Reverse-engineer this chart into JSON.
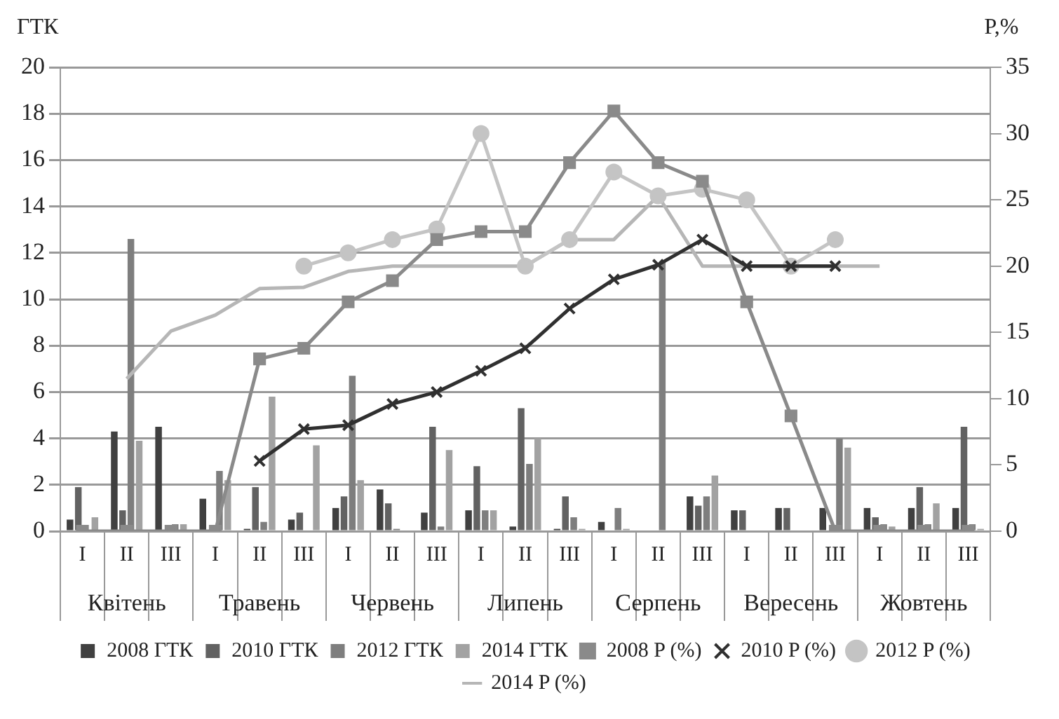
{
  "chart_data": {
    "type": "bar",
    "categories": [
      "I",
      "II",
      "III",
      "I",
      "II",
      "III",
      "I",
      "II",
      "III",
      "I",
      "II",
      "III",
      "I",
      "II",
      "III",
      "I",
      "II",
      "III",
      "I",
      "II",
      "III"
    ],
    "annotations": [
      "Квітень",
      "Травень",
      "Червень",
      "Липень",
      "Серпень",
      "Вересень",
      "Жовтень"
    ],
    "ylabel": "ГТК",
    "y2label": "P,%",
    "ylim": [
      0,
      20
    ],
    "yticks": [
      0,
      2,
      4,
      6,
      8,
      10,
      12,
      14,
      16,
      18,
      20
    ],
    "y2lim": [
      0,
      35
    ],
    "y2ticks": [
      0,
      5,
      10,
      15,
      20,
      25,
      30,
      35
    ],
    "grid": "y",
    "legend": "bottom",
    "series": [
      {
        "name": "2008 ГТК",
        "color": "#404040",
        "values": [
          0.5,
          4.3,
          4.5,
          1.4,
          0.1,
          0.5,
          1.0,
          1.8,
          0.8,
          0.9,
          0.2,
          0.1,
          0.4,
          0,
          1.5,
          0.9,
          1.0,
          1.0,
          1.0,
          1.0,
          1.0
        ]
      },
      {
        "name": "2010 ГТК",
        "color": "#626262",
        "values": [
          1.9,
          0.9,
          null,
          null,
          1.9,
          0.8,
          1.5,
          1.2,
          4.5,
          2.8,
          5.3,
          1.5,
          0,
          0,
          1.1,
          0.9,
          1.0,
          null,
          0.6,
          1.9,
          4.5
        ]
      },
      {
        "name": "2012 ГТК",
        "color": "#7e7e7e",
        "values": [
          null,
          12.6,
          0.3,
          2.6,
          0.4,
          0,
          6.7,
          0.1,
          0.2,
          0.9,
          2.9,
          0.6,
          1.0,
          11.6,
          1.5,
          0,
          0,
          4.0,
          0.3,
          0.3,
          0.3
        ]
      },
      {
        "name": "2014 ГТК",
        "color": "#a2a2a2",
        "values": [
          0.6,
          3.9,
          0.3,
          2.2,
          5.8,
          3.7,
          2.2,
          0,
          3.5,
          0.9,
          4.0,
          0.1,
          0.1,
          0,
          2.4,
          0,
          0,
          3.6,
          0.2,
          1.2,
          0.1
        ]
      },
      {
        "name": "2008 P (%)",
        "type": "line",
        "axis": "y2",
        "marker": "square",
        "color": "#8a8a8a",
        "values": [
          0,
          0,
          0,
          0,
          13.0,
          13.8,
          17.3,
          18.9,
          22.0,
          22.6,
          22.6,
          27.8,
          31.7,
          27.8,
          26.4,
          17.3,
          8.7,
          0,
          0,
          0,
          0
        ]
      },
      {
        "name": "2010 P (%)",
        "type": "line",
        "axis": "y2",
        "marker": "cross",
        "color": "#303030",
        "values": [
          null,
          null,
          null,
          null,
          5.3,
          7.7,
          8.0,
          9.6,
          10.5,
          12.1,
          13.8,
          16.8,
          19.0,
          20.1,
          22.0,
          20.0,
          20.0,
          20.0,
          null,
          null,
          null
        ]
      },
      {
        "name": "2012 P (%)",
        "type": "line",
        "axis": "y2",
        "marker": "circle",
        "color": "#c4c4c4",
        "values": [
          null,
          null,
          null,
          null,
          null,
          20.0,
          21.0,
          22.0,
          22.8,
          30.0,
          20.0,
          22.0,
          27.1,
          25.3,
          25.8,
          25.0,
          20.0,
          22.0,
          null,
          null,
          null
        ]
      },
      {
        "name": "2014 P (%)",
        "type": "line",
        "axis": "y2",
        "marker": "none",
        "color": "#b6b6b6",
        "values": [
          null,
          11.5,
          15.1,
          16.3,
          18.3,
          18.4,
          19.6,
          20.0,
          20.0,
          20.0,
          20.0,
          22.0,
          22.0,
          25.3,
          20.0,
          20.0,
          20.0,
          20.0,
          20.0,
          null,
          null
        ]
      }
    ]
  }
}
